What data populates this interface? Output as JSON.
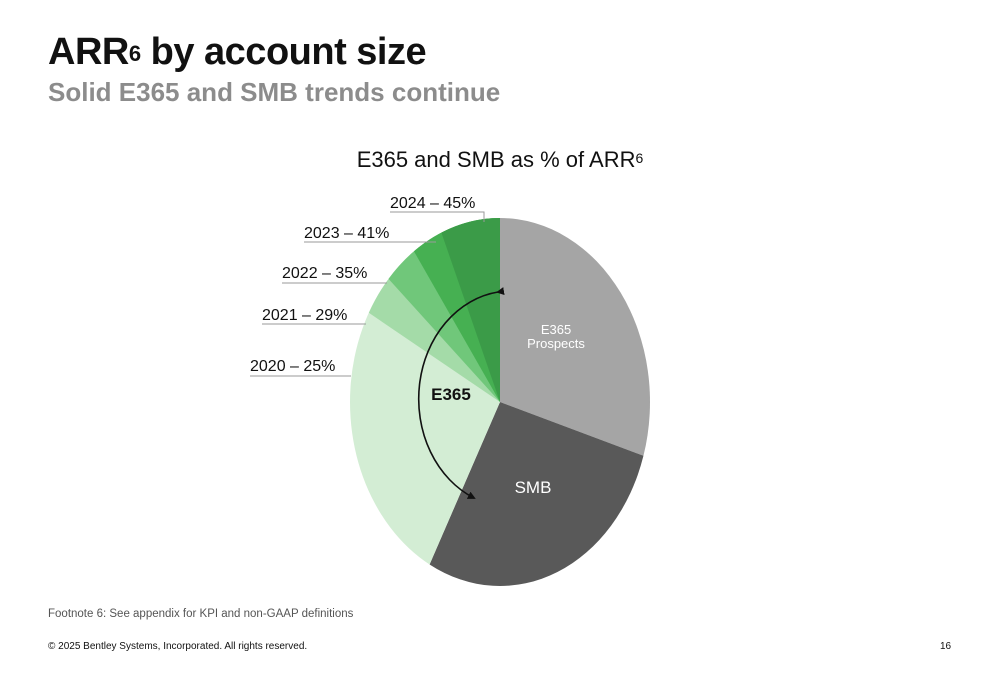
{
  "slide": {
    "title": "ARR",
    "title_sup": "6",
    "title_rest": " by account size",
    "subtitle": "Solid E365 and SMB trends continue",
    "footnote": "Footnote 6: See appendix for KPI and non-GAAP definitions",
    "copyright": "© 2025 Bentley Systems, Incorporated. All rights reserved.",
    "page_number": "16"
  },
  "chart_data": {
    "type": "pie",
    "title": "E365 and SMB as % of ARR",
    "title_sup": "6",
    "slices": [
      {
        "label": "E365 Prospects",
        "label_lines": [
          "E365",
          "Prospects"
        ],
        "color": "#a5a5a5",
        "text_color": "#ffffff"
      },
      {
        "label": "SMB",
        "color": "#595959",
        "text_color": "#ffffff"
      },
      {
        "label": "2020 – 25%",
        "year": 2020,
        "value": 25,
        "color": "#d3edd4"
      },
      {
        "label": "2021 – 29%",
        "year": 2021,
        "value": 29,
        "color": "#a4dba8"
      },
      {
        "label": "2022 – 35%",
        "year": 2022,
        "value": 35,
        "color": "#70c77a"
      },
      {
        "label": "2023 – 41%",
        "year": 2023,
        "value": 41,
        "color": "#46b052"
      },
      {
        "label": "2024 – 45%",
        "year": 2024,
        "value": 45,
        "color": "#3b9b48"
      }
    ],
    "segment_label": "E365",
    "leader_color": "#9a9a9a"
  }
}
